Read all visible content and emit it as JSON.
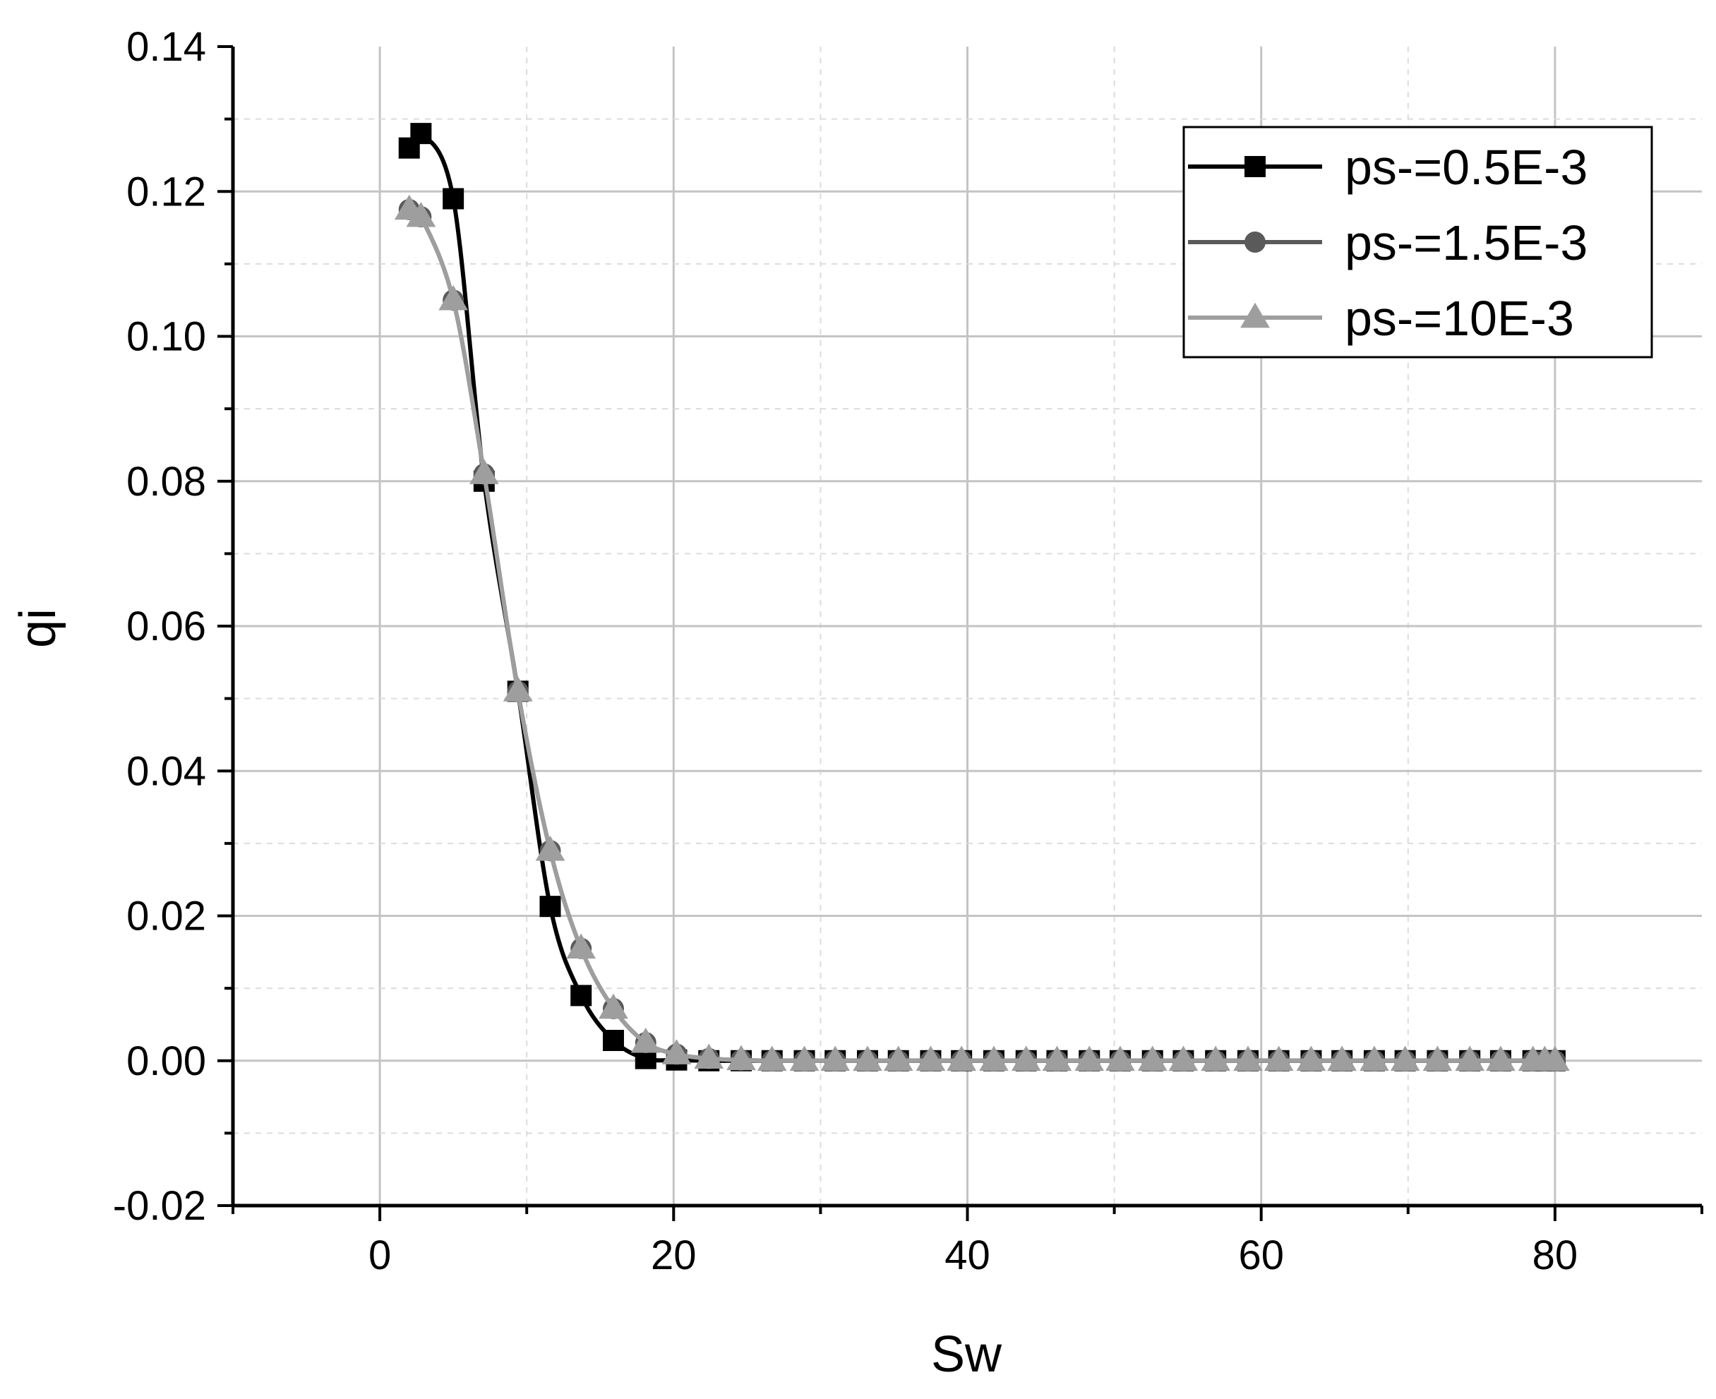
{
  "chart_data": {
    "type": "line",
    "title": "",
    "xlabel": "Sw",
    "ylabel": "qi",
    "xlim": [
      -10,
      90
    ],
    "ylim": [
      -0.02,
      0.14
    ],
    "x_ticks": [
      0,
      20,
      40,
      60,
      80
    ],
    "x_tick_labels": [
      "0",
      "20",
      "40",
      "60",
      "80"
    ],
    "y_ticks": [
      -0.02,
      0.0,
      0.02,
      0.04,
      0.06,
      0.08,
      0.1,
      0.12,
      0.14
    ],
    "y_tick_labels": [
      "-0.02",
      "0.00",
      "0.02",
      "0.04",
      "0.06",
      "0.08",
      "0.10",
      "0.12",
      "0.14"
    ],
    "grid": true,
    "legend_position": "top-right",
    "series": [
      {
        "name": "ps-=0.5E-3",
        "color": "#000000",
        "marker": "square",
        "x": [
          2.0,
          2.8,
          5.0,
          7.1,
          9.4,
          11.6,
          13.7,
          15.9,
          18.1,
          20.2,
          22.4,
          24.6,
          26.7,
          28.9,
          31.0,
          33.2,
          35.3,
          37.5,
          39.6,
          41.8,
          44.0,
          46.1,
          48.3,
          50.4,
          52.6,
          54.7,
          56.9,
          59.1,
          61.2,
          63.4,
          65.5,
          67.7,
          69.8,
          72.0,
          74.2,
          76.3,
          78.5,
          79.3,
          80.0
        ],
        "y": [
          0.126,
          0.128,
          0.119,
          0.08,
          0.051,
          0.0213,
          0.009,
          0.0028,
          0.0003,
          0.0001,
          0.0,
          0.0,
          0.0,
          0.0,
          0.0,
          0.0,
          0.0,
          0.0,
          0.0,
          0.0,
          0.0,
          0.0,
          0.0,
          0.0,
          0.0,
          0.0,
          0.0,
          0.0,
          0.0,
          0.0,
          0.0,
          0.0,
          0.0,
          0.0,
          0.0,
          0.0,
          0.0,
          0.0,
          0.0
        ]
      },
      {
        "name": "ps-=1.5E-3",
        "color": "#5a5a5a",
        "marker": "circle",
        "x": [
          2.0,
          2.8,
          5.0,
          7.1,
          9.4,
          11.6,
          13.7,
          15.9,
          18.1,
          20.2,
          22.4,
          24.6,
          26.7,
          28.9,
          31.0,
          33.2,
          35.3,
          37.5,
          39.6,
          41.8,
          44.0,
          46.1,
          48.3,
          50.4,
          52.6,
          54.7,
          56.9,
          59.1,
          61.2,
          63.4,
          65.5,
          67.7,
          69.8,
          72.0,
          74.2,
          76.3,
          78.5,
          79.3,
          80.0
        ],
        "y": [
          0.1175,
          0.1165,
          0.105,
          0.081,
          0.051,
          0.029,
          0.0155,
          0.0072,
          0.0025,
          0.0009,
          0.0003,
          0.0001,
          0.0,
          0.0,
          0.0,
          0.0,
          0.0,
          0.0,
          0.0,
          0.0,
          0.0,
          0.0,
          0.0,
          0.0,
          0.0,
          0.0,
          0.0,
          0.0,
          0.0,
          0.0,
          0.0,
          0.0,
          0.0,
          0.0,
          0.0,
          0.0,
          0.0,
          0.0,
          0.0
        ]
      },
      {
        "name": "ps-=10E-3",
        "color": "#9e9e9e",
        "marker": "triangle",
        "x": [
          2.0,
          2.8,
          5.0,
          7.1,
          9.4,
          11.6,
          13.7,
          15.9,
          18.1,
          20.2,
          22.4,
          24.6,
          26.7,
          28.9,
          31.0,
          33.2,
          35.3,
          37.5,
          39.6,
          41.8,
          44.0,
          46.1,
          48.3,
          50.4,
          52.6,
          54.7,
          56.9,
          59.1,
          61.2,
          63.4,
          65.5,
          67.7,
          69.8,
          72.0,
          74.2,
          76.3,
          78.5,
          79.3,
          80.0
        ],
        "y": [
          0.1175,
          0.1165,
          0.105,
          0.081,
          0.051,
          0.029,
          0.0155,
          0.0072,
          0.0025,
          0.0009,
          0.0003,
          0.0001,
          0.0,
          0.0,
          0.0,
          0.0,
          0.0,
          0.0,
          0.0,
          0.0,
          0.0,
          0.0,
          0.0,
          0.0,
          0.0,
          0.0,
          0.0,
          0.0,
          0.0,
          0.0,
          0.0,
          0.0,
          0.0,
          0.0,
          0.0,
          0.0,
          0.0,
          0.0,
          0.0
        ]
      }
    ]
  }
}
